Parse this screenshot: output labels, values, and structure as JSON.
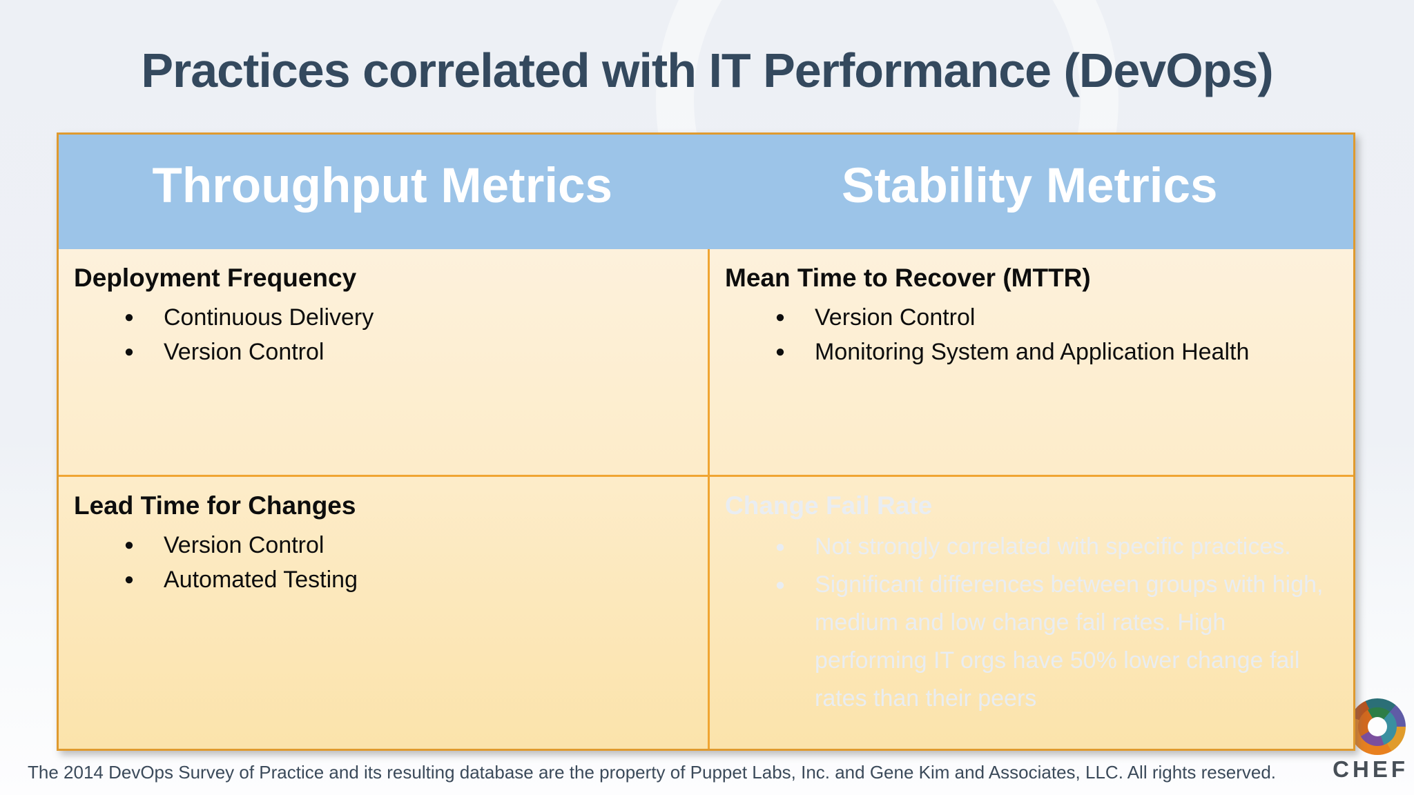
{
  "slide": {
    "title": "Practices correlated with IT Performance (DevOps)",
    "footer": "The 2014 DevOps Survey of Practice and its resulting database are the property of Puppet Labs, Inc. and Gene Kim and Associates, LLC. All rights reserved.",
    "logo": {
      "text": "CHEF"
    }
  },
  "table": {
    "columns": [
      {
        "header": "Throughput Metrics"
      },
      {
        "header": "Stability Metrics"
      }
    ],
    "cells": [
      {
        "heading": "Deployment Frequency",
        "bullets": [
          "Continuous Delivery",
          "Version Control"
        ],
        "faded": false
      },
      {
        "heading": "Mean Time to Recover (MTTR)",
        "bullets": [
          "Version Control",
          "Monitoring System and Application Health"
        ],
        "faded": false
      },
      {
        "heading": "Lead Time for Changes",
        "bullets": [
          "Version Control",
          "Automated Testing"
        ],
        "faded": false
      },
      {
        "heading": "Change Fail Rate",
        "bullets": [
          "Not strongly correlated with specific practices.",
          "Significant differences between groups with high, medium and low change fail rates. High performing IT orgs have 50% lower change fail rates than their peers"
        ],
        "faded": true
      }
    ]
  },
  "colors": {
    "header_bg": "#9cc4e8",
    "body_gradient_top": "#fdf1dc",
    "body_gradient_bottom": "#fbe3ab",
    "table_border": "#df9a2f",
    "inner_divider": "#f0a532",
    "title_text": "#34495e",
    "faded_text": "#e9edf2",
    "footer_text": "#3b4a5a"
  }
}
